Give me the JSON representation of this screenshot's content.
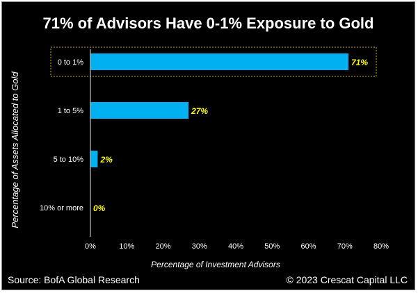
{
  "title": "71% of Advisors Have 0-1% Exposure to Gold",
  "source": "Source: BofA Global Research",
  "copyright": "© 2023 Crescat Capital LLC",
  "colors": {
    "bar": "#00b0f0",
    "value_label": "#ffff00",
    "highlight_border": "#c8b400",
    "axis": "#bfbfbf",
    "text": "#ffffff"
  },
  "chart_data": {
    "type": "bar",
    "orientation": "horizontal",
    "title": "71% of Advisors Have 0-1% Exposure to Gold",
    "xlabel": "Percentage of Investment Advisors",
    "ylabel": "Percentage of Assets Allocated to Gold",
    "categories": [
      "0 to 1%",
      "1 to 5%",
      "5 to 10%",
      "10% or more"
    ],
    "values": [
      71,
      27,
      2,
      0
    ],
    "value_labels": [
      "71%",
      "27%",
      "2%",
      "0%"
    ],
    "xlim": [
      0,
      80
    ],
    "xticks": [
      0,
      10,
      20,
      30,
      40,
      50,
      60,
      70,
      80
    ],
    "xtick_labels": [
      "0%",
      "10%",
      "20%",
      "30%",
      "40%",
      "50%",
      "60%",
      "70%",
      "80%"
    ],
    "highlighted_category": "0 to 1%",
    "grid": false
  }
}
